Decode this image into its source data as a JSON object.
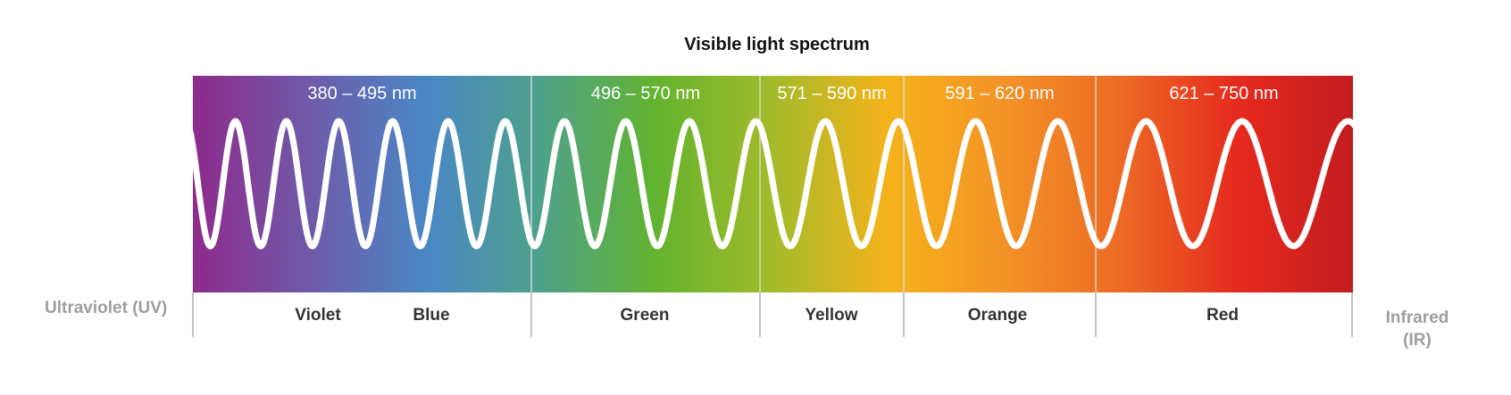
{
  "title": "Visible light spectrum",
  "left_label": "Ultraviolet (UV)",
  "right_label_line1": "Infrared",
  "right_label_line2": "(IR)",
  "bands": [
    {
      "range": "380 – 495 nm",
      "names": [
        "Violet",
        "Blue"
      ]
    },
    {
      "range": "496 – 570 nm",
      "names": [
        "Green"
      ]
    },
    {
      "range": "571 – 590 nm",
      "names": [
        "Yellow"
      ]
    },
    {
      "range": "591 – 620 nm",
      "names": [
        "Orange"
      ]
    },
    {
      "range": "621 – 750  nm",
      "names": [
        "Red"
      ]
    }
  ],
  "gradient_colors": [
    "#8e2a8c",
    "#6f5aa8",
    "#4a86c6",
    "#4ea28a",
    "#63b32e",
    "#a3bb2a",
    "#f5b21a",
    "#f39226",
    "#ec6a24",
    "#e62a1e",
    "#c41c1e"
  ],
  "wave": {
    "color": "#ffffff",
    "cycles": 17
  }
}
